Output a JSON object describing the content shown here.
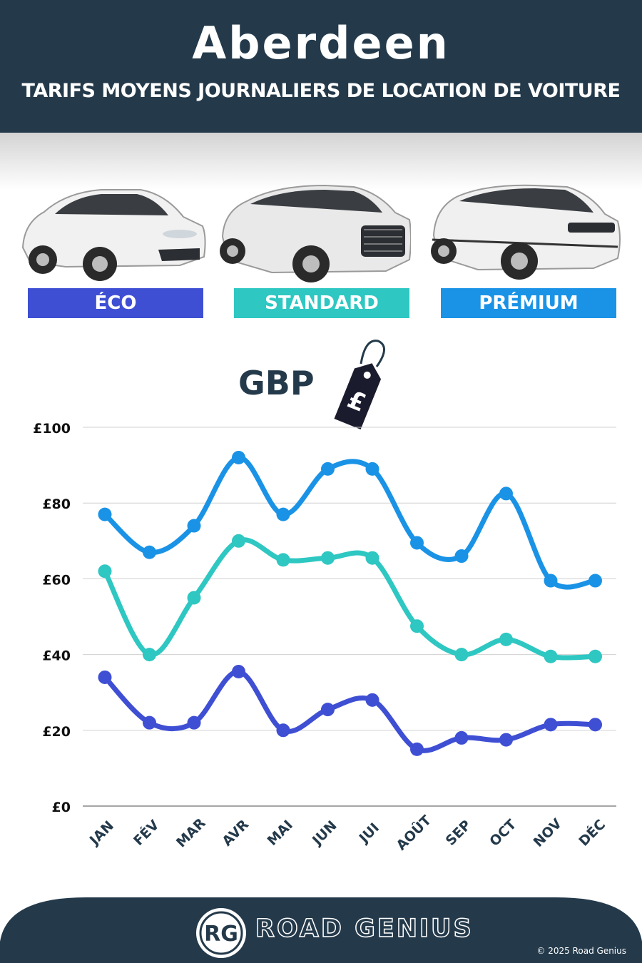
{
  "header": {
    "city": "Aberdeen",
    "subtitle": "TARIFS MOYENS JOURNALIERS DE LOCATION DE VOITURE"
  },
  "categories": [
    {
      "label": "ÉCO",
      "color": "#3f4fd4"
    },
    {
      "label": "STANDARD",
      "color": "#2ec7c2"
    },
    {
      "label": "PRÉMIUM",
      "color": "#1a93e6"
    }
  ],
  "currency": {
    "label": "GBP",
    "symbol": "£"
  },
  "chart_data": {
    "type": "line",
    "categories": [
      "JAN",
      "FÉV",
      "MAR",
      "AVR",
      "MAI",
      "JUN",
      "JUI",
      "AOÛT",
      "SEP",
      "OCT",
      "NOV",
      "DÉC"
    ],
    "series": [
      {
        "name": "PRÉMIUM",
        "color": "#1a93e6",
        "values": [
          77,
          67,
          74,
          92,
          77,
          89,
          89,
          69.5,
          66,
          82.5,
          59.5,
          59.5
        ]
      },
      {
        "name": "STANDARD",
        "color": "#2ec7c2",
        "values": [
          62,
          40,
          55,
          70,
          65,
          65.5,
          65.5,
          47.5,
          40,
          44,
          39.5,
          39.5
        ]
      },
      {
        "name": "ÉCO",
        "color": "#3f4fd4",
        "values": [
          34,
          22,
          22,
          35.5,
          20,
          25.5,
          28,
          15,
          18,
          17.5,
          21.5,
          21.5
        ]
      }
    ],
    "yticks": [
      "£0",
      "£20",
      "£40",
      "£60",
      "£80",
      "£100"
    ],
    "ylim": [
      0,
      100
    ],
    "grid": true
  },
  "footer": {
    "logo_text": "RG",
    "brand": "ROAD GENIUS",
    "copyright": "© 2025 Road Genius"
  }
}
